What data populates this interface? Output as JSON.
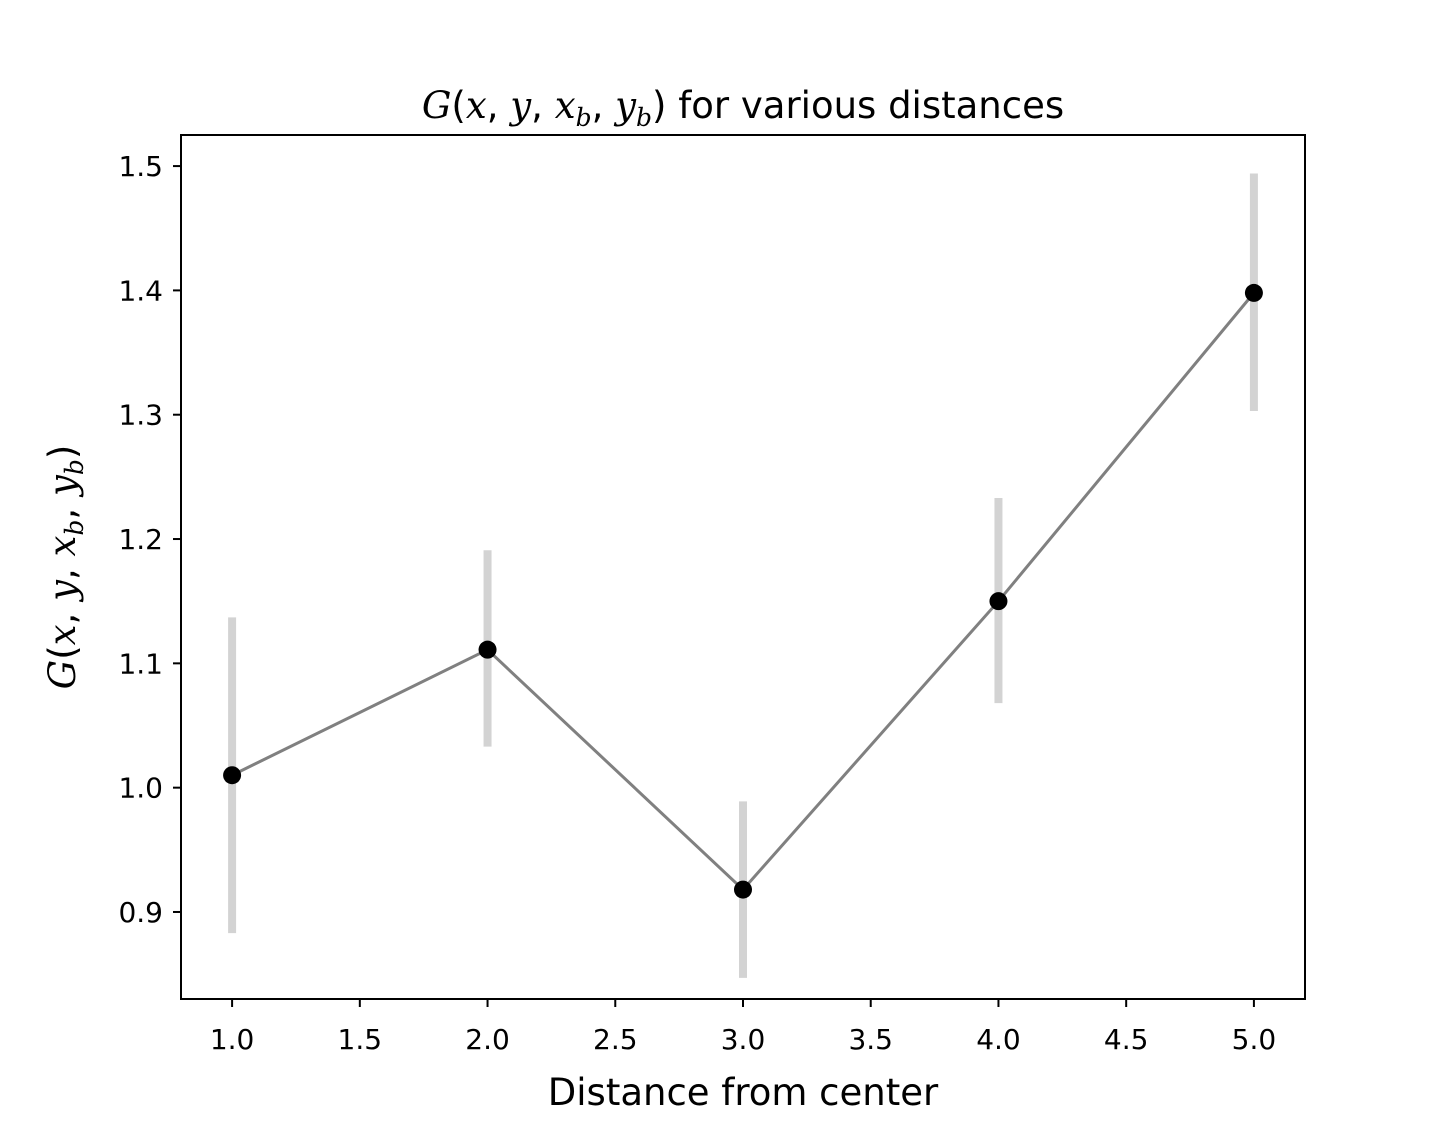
{
  "chart_data": {
    "type": "line",
    "title_fn": "G",
    "title_open": "(",
    "title_args": [
      "x",
      "y",
      "x",
      "y"
    ],
    "title_subs": [
      "",
      "",
      "b",
      "b"
    ],
    "title_close": ")",
    "title_rest": " for various distances",
    "xlabel": "Distance from center",
    "ylabel_fn": "G",
    "xlim": [
      0.8,
      5.2
    ],
    "ylim": [
      0.83,
      1.525
    ],
    "xticks": [
      1.0,
      1.5,
      2.0,
      2.5,
      3.0,
      3.5,
      4.0,
      4.5,
      5.0
    ],
    "xtick_labels": [
      "1.0",
      "1.5",
      "2.0",
      "2.5",
      "3.0",
      "3.5",
      "4.0",
      "4.5",
      "5.0"
    ],
    "yticks": [
      0.9,
      1.0,
      1.1,
      1.2,
      1.3,
      1.4,
      1.5
    ],
    "ytick_labels": [
      "0.9",
      "1.0",
      "1.1",
      "1.2",
      "1.3",
      "1.4",
      "1.5"
    ],
    "grid": false,
    "series": [
      {
        "x": [
          1.0,
          2.0,
          3.0,
          4.0,
          5.0
        ],
        "y": [
          1.01,
          1.111,
          0.918,
          1.15,
          1.398
        ],
        "yerr_low": [
          0.883,
          1.033,
          0.847,
          1.068,
          1.303
        ],
        "yerr_high": [
          1.137,
          1.191,
          0.989,
          1.233,
          1.494
        ],
        "line_color": "#808080",
        "marker_color": "#000000",
        "errorbar_color": "#d3d3d3"
      }
    ]
  }
}
